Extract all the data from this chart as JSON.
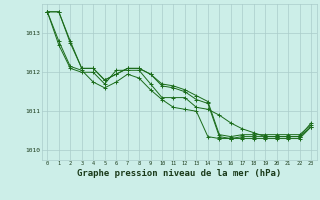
{
  "background_color": "#cceee8",
  "grid_color": "#aaccca",
  "line_color": "#1a6b1a",
  "xlabel": "Graphe pression niveau de la mer (hPa)",
  "xlabel_fontsize": 6.5,
  "xlim": [
    -0.5,
    23.5
  ],
  "ylim": [
    1009.75,
    1013.75
  ],
  "yticks": [
    1010,
    1011,
    1012,
    1013
  ],
  "xticks": [
    0,
    1,
    2,
    3,
    4,
    5,
    6,
    7,
    8,
    9,
    10,
    11,
    12,
    13,
    14,
    15,
    16,
    17,
    18,
    19,
    20,
    21,
    22,
    23
  ],
  "series": [
    [
      1013.55,
      1013.55,
      1012.8,
      1012.1,
      1012.1,
      1011.8,
      1011.95,
      1012.1,
      1012.1,
      1011.95,
      1011.7,
      1011.65,
      1011.55,
      1011.4,
      1011.25,
      1010.4,
      1010.35,
      1010.4,
      1010.4,
      1010.4,
      1010.4,
      1010.4,
      1010.4,
      1010.65
    ],
    [
      1013.55,
      1013.55,
      1012.75,
      1012.1,
      1012.1,
      1011.8,
      1011.95,
      1012.1,
      1012.1,
      1011.95,
      1011.65,
      1011.6,
      1011.5,
      1011.3,
      1011.2,
      1010.35,
      1010.3,
      1010.35,
      1010.35,
      1010.35,
      1010.35,
      1010.35,
      1010.35,
      1010.6
    ],
    [
      1013.55,
      1012.8,
      1012.15,
      1012.05,
      1011.75,
      1011.6,
      1011.75,
      1011.95,
      1011.85,
      1011.55,
      1011.3,
      1011.1,
      1011.05,
      1011.0,
      1010.35,
      1010.3,
      1010.3,
      1010.3,
      1010.3,
      1010.3,
      1010.3,
      1010.3,
      1010.3,
      1010.6
    ],
    [
      1013.55,
      1012.7,
      1012.1,
      1012.0,
      1012.0,
      1011.7,
      1012.05,
      1012.05,
      1012.05,
      1011.7,
      1011.35,
      1011.35,
      1011.35,
      1011.1,
      1011.05,
      1010.9,
      1010.7,
      1010.55,
      1010.45,
      1010.35,
      1010.35,
      1010.35,
      1010.35,
      1010.7
    ]
  ]
}
